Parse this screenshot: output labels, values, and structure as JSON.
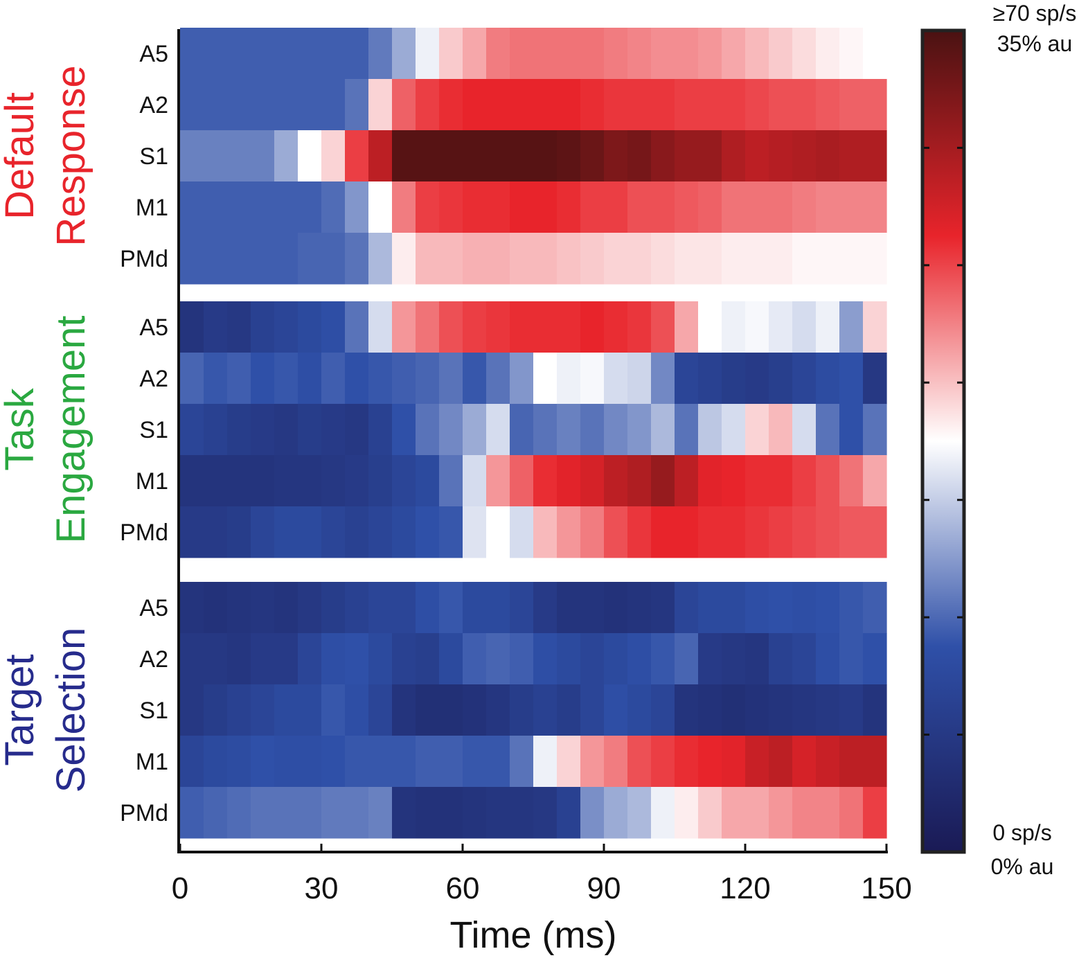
{
  "chart_data": {
    "type": "heatmap",
    "xlabel": "Time (ms)",
    "xlim": [
      0,
      150
    ],
    "xticks": [
      "0",
      "30",
      "60",
      "90",
      "120",
      "150"
    ],
    "bin_width_ms": 5,
    "colorbar": {
      "top_label_line1": "≥70 sp/s",
      "top_label_line2": "35% au",
      "bottom_label_line1": "0 sp/s",
      "bottom_label_line2": "0% au",
      "range": [
        0,
        1
      ],
      "colors": [
        "#1a1a55",
        "#2f50a8",
        "#ffffff",
        "#e8242b",
        "#4a1212"
      ]
    },
    "groups": [
      {
        "line1": "Default",
        "line2": "Response",
        "color": "#e8242b",
        "rows": [
          {
            "label": "A5",
            "values": [
              0.27,
              0.27,
              0.27,
              0.27,
              0.27,
              0.27,
              0.27,
              0.27,
              0.31,
              0.38,
              0.48,
              0.56,
              0.6,
              0.65,
              0.66,
              0.66,
              0.66,
              0.66,
              0.65,
              0.64,
              0.63,
              0.63,
              0.62,
              0.6,
              0.58,
              0.56,
              0.54,
              0.52,
              0.51,
              0.5
            ]
          },
          {
            "label": "A2",
            "values": [
              0.27,
              0.27,
              0.27,
              0.27,
              0.27,
              0.27,
              0.27,
              0.3,
              0.55,
              0.68,
              0.72,
              0.74,
              0.75,
              0.75,
              0.75,
              0.75,
              0.75,
              0.74,
              0.73,
              0.73,
              0.73,
              0.72,
              0.72,
              0.72,
              0.71,
              0.7,
              0.7,
              0.69,
              0.68,
              0.68
            ]
          },
          {
            "label": "S1",
            "values": [
              0.32,
              0.32,
              0.32,
              0.32,
              0.38,
              0.5,
              0.55,
              0.72,
              0.82,
              0.98,
              0.98,
              0.98,
              0.98,
              0.98,
              0.98,
              0.98,
              0.97,
              0.95,
              0.92,
              0.93,
              0.9,
              0.88,
              0.88,
              0.84,
              0.82,
              0.83,
              0.84,
              0.85,
              0.84,
              0.84
            ]
          },
          {
            "label": "M1",
            "values": [
              0.27,
              0.27,
              0.27,
              0.27,
              0.27,
              0.27,
              0.29,
              0.35,
              0.5,
              0.65,
              0.72,
              0.73,
              0.74,
              0.74,
              0.75,
              0.75,
              0.74,
              0.72,
              0.72,
              0.7,
              0.7,
              0.69,
              0.68,
              0.66,
              0.66,
              0.66,
              0.65,
              0.64,
              0.64,
              0.64
            ]
          },
          {
            "label": "PMd",
            "values": [
              0.27,
              0.27,
              0.27,
              0.27,
              0.27,
              0.28,
              0.28,
              0.3,
              0.4,
              0.52,
              0.58,
              0.58,
              0.59,
              0.59,
              0.58,
              0.58,
              0.57,
              0.56,
              0.55,
              0.55,
              0.54,
              0.53,
              0.53,
              0.52,
              0.52,
              0.52,
              0.51,
              0.51,
              0.51,
              0.51
            ]
          }
        ]
      },
      {
        "line1": "Task",
        "line2": "Engagement",
        "color": "#2aa840",
        "rows": [
          {
            "label": "A5",
            "values": [
              0.12,
              0.15,
              0.14,
              0.18,
              0.2,
              0.22,
              0.24,
              0.3,
              0.45,
              0.62,
              0.66,
              0.7,
              0.72,
              0.73,
              0.74,
              0.74,
              0.74,
              0.75,
              0.74,
              0.73,
              0.7,
              0.6,
              0.5,
              0.48,
              0.49,
              0.47,
              0.45,
              0.48,
              0.36,
              0.55
            ]
          },
          {
            "label": "A2",
            "values": [
              0.28,
              0.26,
              0.27,
              0.25,
              0.26,
              0.24,
              0.27,
              0.25,
              0.26,
              0.27,
              0.28,
              0.3,
              0.26,
              0.3,
              0.35,
              0.5,
              0.48,
              0.49,
              0.45,
              0.44,
              0.33,
              0.2,
              0.18,
              0.16,
              0.15,
              0.17,
              0.2,
              0.23,
              0.25,
              0.14
            ]
          },
          {
            "label": "S1",
            "values": [
              0.2,
              0.18,
              0.16,
              0.15,
              0.14,
              0.16,
              0.15,
              0.14,
              0.18,
              0.25,
              0.3,
              0.33,
              0.38,
              0.45,
              0.28,
              0.3,
              0.32,
              0.3,
              0.33,
              0.35,
              0.4,
              0.3,
              0.42,
              0.45,
              0.55,
              0.58,
              0.45,
              0.3,
              0.25,
              0.3
            ]
          },
          {
            "label": "M1",
            "values": [
              0.12,
              0.12,
              0.12,
              0.12,
              0.13,
              0.13,
              0.14,
              0.15,
              0.17,
              0.2,
              0.22,
              0.3,
              0.45,
              0.62,
              0.68,
              0.74,
              0.76,
              0.78,
              0.82,
              0.84,
              0.88,
              0.82,
              0.76,
              0.75,
              0.74,
              0.74,
              0.72,
              0.7,
              0.66,
              0.6
            ]
          },
          {
            "label": "PMd",
            "values": [
              0.15,
              0.15,
              0.16,
              0.2,
              0.22,
              0.22,
              0.2,
              0.18,
              0.2,
              0.22,
              0.25,
              0.26,
              0.46,
              0.5,
              0.45,
              0.58,
              0.62,
              0.65,
              0.7,
              0.73,
              0.75,
              0.75,
              0.74,
              0.74,
              0.73,
              0.72,
              0.71,
              0.7,
              0.69,
              0.69
            ]
          }
        ]
      },
      {
        "line1": "Target",
        "line2": "Selection",
        "color": "#262b8c",
        "rows": [
          {
            "label": "A5",
            "values": [
              0.12,
              0.11,
              0.12,
              0.13,
              0.12,
              0.14,
              0.16,
              0.18,
              0.2,
              0.2,
              0.24,
              0.26,
              0.22,
              0.22,
              0.2,
              0.15,
              0.12,
              0.12,
              0.11,
              0.12,
              0.13,
              0.2,
              0.22,
              0.22,
              0.24,
              0.25,
              0.24,
              0.25,
              0.26,
              0.27
            ]
          },
          {
            "label": "A2",
            "values": [
              0.14,
              0.14,
              0.13,
              0.15,
              0.15,
              0.2,
              0.24,
              0.25,
              0.22,
              0.18,
              0.17,
              0.22,
              0.27,
              0.28,
              0.27,
              0.24,
              0.22,
              0.2,
              0.22,
              0.24,
              0.26,
              0.28,
              0.15,
              0.14,
              0.13,
              0.18,
              0.2,
              0.24,
              0.26,
              0.25
            ]
          },
          {
            "label": "S1",
            "values": [
              0.14,
              0.16,
              0.18,
              0.2,
              0.22,
              0.22,
              0.26,
              0.24,
              0.2,
              0.12,
              0.1,
              0.1,
              0.11,
              0.13,
              0.16,
              0.18,
              0.16,
              0.2,
              0.24,
              0.22,
              0.2,
              0.12,
              0.11,
              0.1,
              0.11,
              0.12,
              0.13,
              0.14,
              0.15,
              0.12
            ]
          },
          {
            "label": "M1",
            "values": [
              0.2,
              0.22,
              0.23,
              0.25,
              0.24,
              0.24,
              0.25,
              0.26,
              0.26,
              0.26,
              0.27,
              0.27,
              0.26,
              0.26,
              0.3,
              0.48,
              0.55,
              0.62,
              0.65,
              0.7,
              0.72,
              0.74,
              0.75,
              0.76,
              0.8,
              0.82,
              0.78,
              0.8,
              0.82,
              0.82
            ]
          },
          {
            "label": "PMd",
            "values": [
              0.27,
              0.28,
              0.29,
              0.3,
              0.3,
              0.3,
              0.31,
              0.31,
              0.32,
              0.12,
              0.11,
              0.11,
              0.12,
              0.13,
              0.13,
              0.14,
              0.18,
              0.34,
              0.38,
              0.4,
              0.48,
              0.52,
              0.56,
              0.6,
              0.6,
              0.62,
              0.64,
              0.64,
              0.66,
              0.72
            ]
          }
        ]
      }
    ]
  }
}
